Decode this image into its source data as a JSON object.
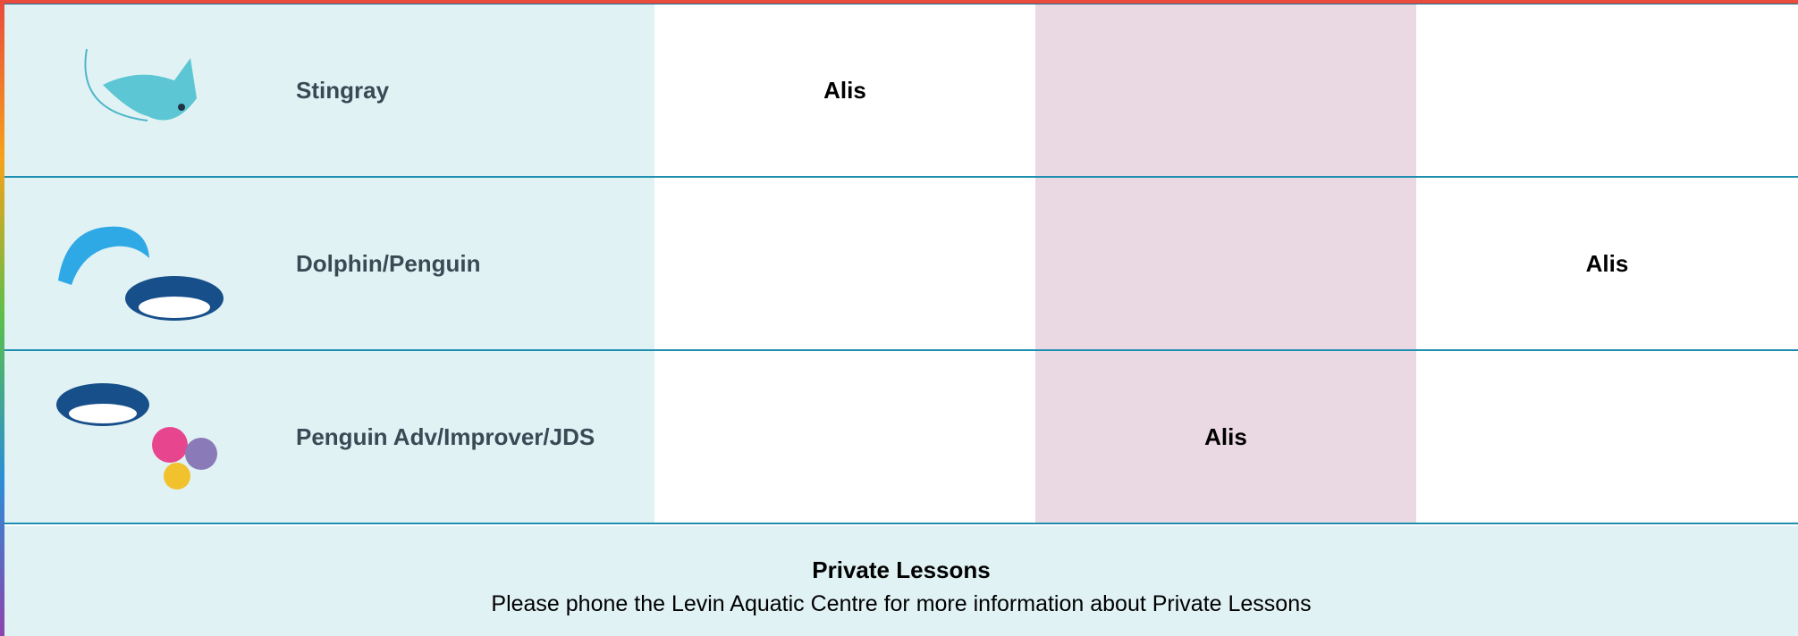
{
  "rows": [
    {
      "level": "Stingray",
      "cells": [
        "Alis",
        null,
        null
      ]
    },
    {
      "level": "Dolphin/Penguin",
      "cells": [
        null,
        null,
        "Alis"
      ]
    },
    {
      "level": "Penguin Adv/Improver/JDS",
      "cells": [
        null,
        "Alis",
        null
      ]
    }
  ],
  "footer": {
    "title": "Private Lessons",
    "text": "Please phone the Levin Aquatic Centre for more information about Private Lessons"
  }
}
